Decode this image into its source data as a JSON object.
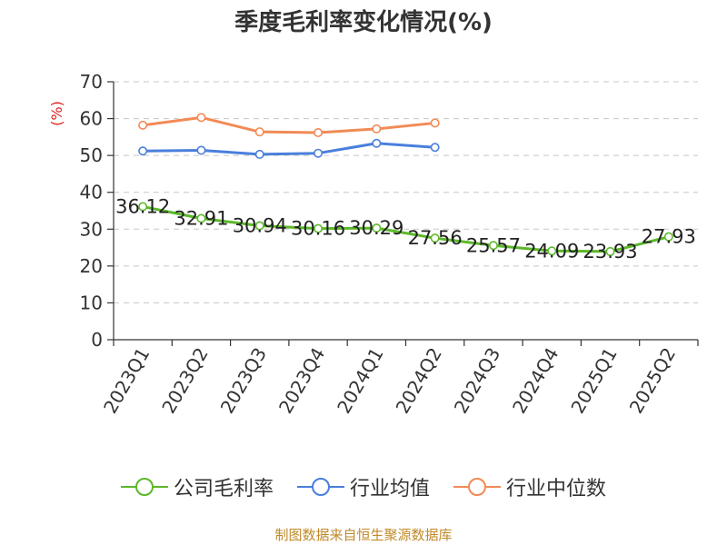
{
  "chart_data": {
    "type": "line",
    "title": "季度毛利率变化情况(%)",
    "ylabel": "(%)",
    "xlabel": "",
    "ylim": [
      0,
      70
    ],
    "yticks": [
      0,
      10,
      20,
      30,
      40,
      50,
      60,
      70
    ],
    "grid": true,
    "legend_position": "bottom",
    "categories": [
      "2023Q1",
      "2023Q2",
      "2023Q3",
      "2023Q4",
      "2024Q1",
      "2024Q2",
      "2024Q3",
      "2024Q4",
      "2025Q1",
      "2025Q2"
    ],
    "series": [
      {
        "name": "公司毛利率",
        "color": "#5cb82a",
        "values": [
          36.12,
          32.91,
          30.94,
          30.16,
          30.29,
          27.56,
          25.57,
          24.09,
          23.93,
          27.93
        ],
        "labels": [
          "36.12",
          "32.91",
          "30.94",
          "30.16",
          "30.29",
          "27.56",
          "25.57",
          "24.09",
          "23.93",
          "27.93"
        ]
      },
      {
        "name": "行业均值",
        "color": "#4a7fdc",
        "values": [
          51.2,
          51.4,
          50.3,
          50.6,
          53.3,
          52.2,
          null,
          null,
          null,
          null
        ]
      },
      {
        "name": "行业中位数",
        "color": "#f28a55",
        "values": [
          58.2,
          60.3,
          56.4,
          56.2,
          57.2,
          58.8,
          null,
          null,
          null,
          null
        ]
      }
    ]
  },
  "footer": {
    "source": "制图数据来自恒生聚源数据库"
  }
}
